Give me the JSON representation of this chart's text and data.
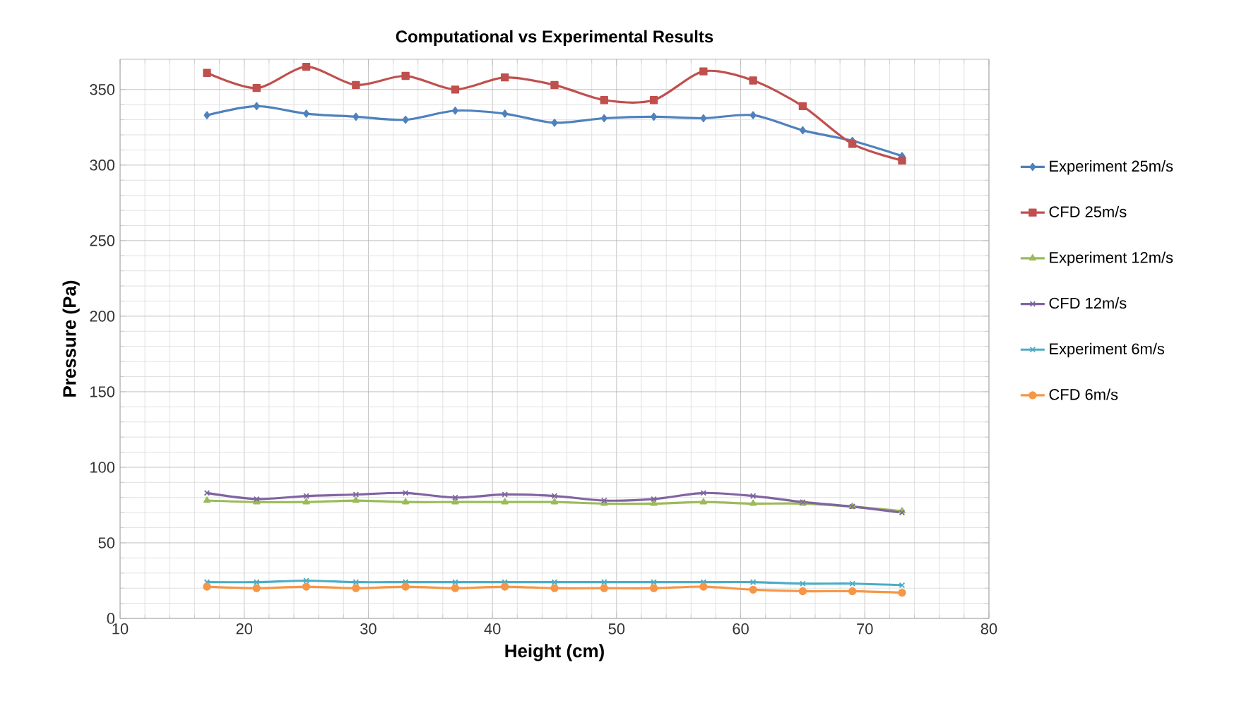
{
  "chart_data": {
    "type": "line",
    "title": "Computational vs Experimental Results",
    "xlabel": "Height (cm)",
    "ylabel": "Pressure (Pa)",
    "x": [
      17,
      21,
      25,
      29,
      33,
      37,
      41,
      45,
      49,
      53,
      57,
      61,
      65,
      69,
      73
    ],
    "series": [
      {
        "name": "Experiment 25m/s",
        "color": "#4f81bd",
        "marker": "diamond",
        "values": [
          333,
          339,
          334,
          332,
          330,
          336,
          334,
          328,
          331,
          332,
          331,
          333,
          323,
          316,
          306
        ]
      },
      {
        "name": "CFD 25m/s",
        "color": "#c0504d",
        "marker": "square",
        "values": [
          361,
          351,
          365,
          353,
          359,
          350,
          358,
          353,
          343,
          343,
          362,
          356,
          339,
          314,
          303
        ]
      },
      {
        "name": "Experiment 12m/s",
        "color": "#9bbb59",
        "marker": "triangle",
        "values": [
          78,
          77,
          77,
          78,
          77,
          77,
          77,
          77,
          76,
          76,
          77,
          76,
          76,
          74,
          71
        ]
      },
      {
        "name": "CFD 12m/s",
        "color": "#8064a2",
        "marker": "cross",
        "values": [
          83,
          79,
          81,
          82,
          83,
          80,
          82,
          81,
          78,
          79,
          83,
          81,
          77,
          74,
          70
        ]
      },
      {
        "name": "Experiment 6m/s",
        "color": "#4bacc6",
        "marker": "cross",
        "values": [
          24,
          24,
          25,
          24,
          24,
          24,
          24,
          24,
          24,
          24,
          24,
          24,
          23,
          23,
          22
        ]
      },
      {
        "name": "CFD 6m/s",
        "color": "#f79646",
        "marker": "circle",
        "values": [
          21,
          20,
          21,
          20,
          21,
          20,
          21,
          20,
          20,
          20,
          21,
          19,
          18,
          18,
          17
        ]
      }
    ],
    "xlim": [
      10,
      80
    ],
    "xticks": [
      10,
      20,
      30,
      40,
      50,
      60,
      70,
      80
    ],
    "ylim": [
      0,
      370
    ],
    "yticks": [
      0,
      50,
      100,
      150,
      200,
      250,
      300,
      350
    ],
    "grid": true,
    "legend": "right"
  }
}
